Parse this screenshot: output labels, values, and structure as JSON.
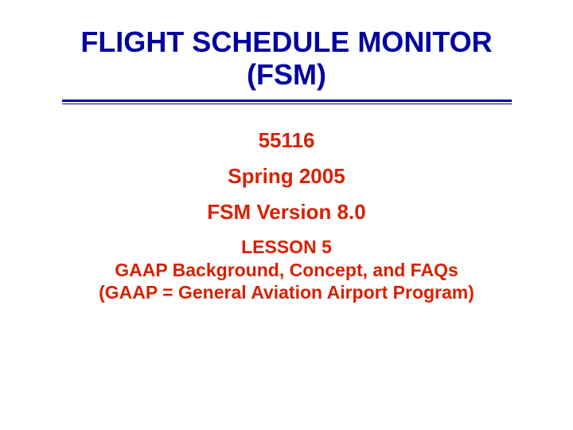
{
  "title": {
    "line1": "FLIGHT SCHEDULE MONITOR",
    "line2": "(FSM)",
    "color": "#0000a0",
    "fontsize": 36
  },
  "divider": {
    "color": "#0000a0"
  },
  "info": {
    "course_number": "55116",
    "term": "Spring 2005",
    "version": "FSM Version 8.0",
    "color": "#d92000",
    "fontsize": 26
  },
  "lesson": {
    "line1": "LESSON 5",
    "line2": "GAAP Background, Concept, and FAQs",
    "line3": "(GAAP = General Aviation Airport Program)",
    "color": "#d92000",
    "fontsize": 23
  }
}
